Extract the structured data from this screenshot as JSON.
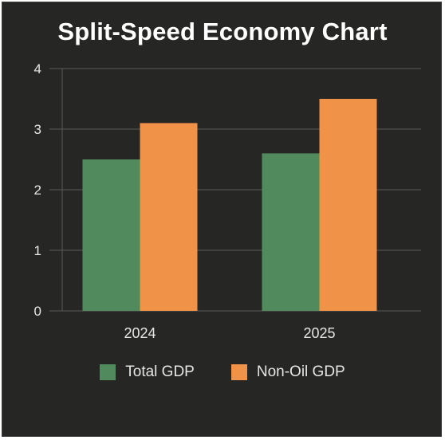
{
  "chart_data": {
    "type": "bar",
    "title": "Split-Speed Economy Chart",
    "categories": [
      "2024",
      "2025"
    ],
    "series": [
      {
        "name": "Total GDP",
        "values": [
          2.5,
          2.6
        ],
        "color": "#518a5c"
      },
      {
        "name": "Non-Oil GDP",
        "values": [
          3.1,
          3.5
        ],
        "color": "#f19249"
      }
    ],
    "ylim": [
      0,
      4
    ],
    "yticks": [
      "0",
      "1",
      "2",
      "3",
      "4"
    ],
    "grid": true,
    "legend": "bottom",
    "xlabel": "",
    "ylabel": ""
  }
}
